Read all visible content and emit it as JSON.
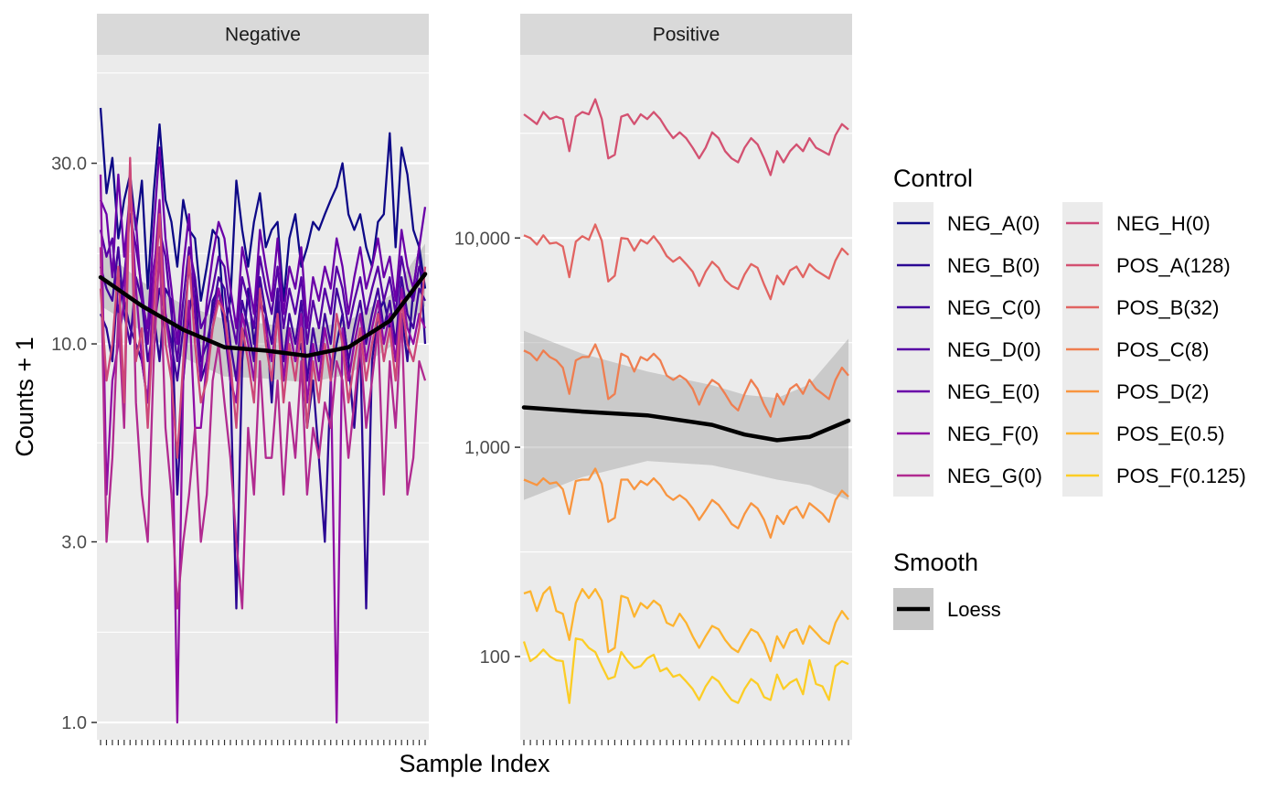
{
  "chart_data": {
    "type": "line",
    "x_label": "Sample Index",
    "y_label": "Counts + 1",
    "y_scale": "log10",
    "grid": true,
    "legend_position": "right",
    "panels": [
      {
        "name": "Negative",
        "ylim": [
          0.9,
          58
        ],
        "y_ticks": [
          1.0,
          3.0,
          10.0,
          30.0
        ],
        "y_tick_labels": [
          "1.0",
          "3.0",
          "10.0",
          "30.0"
        ],
        "series": [
          {
            "name": "NEG_A(0)",
            "color": "#0d0887",
            "values": [
              42,
              25,
              31,
              19,
              24,
              28,
              20,
              27,
              14,
              25,
              38,
              24,
              21,
              16,
              24,
              20,
              19,
              13,
              16,
              20,
              19,
              11,
              13,
              27,
              20,
              16,
              21,
              25,
              18,
              20,
              21,
              13,
              19,
              22,
              16,
              18,
              21,
              20,
              22,
              24,
              26,
              30,
              22,
              20,
              22,
              18,
              16,
              21,
              22,
              36,
              18,
              33,
              28,
              20,
              18,
              14
            ]
          },
          {
            "name": "NEG_B(0)",
            "color": "#2a0593",
            "values": [
              12,
              11,
              9,
              15,
              13,
              11,
              10,
              9,
              7,
              12,
              9,
              14,
              13,
              4,
              8,
              12,
              15,
              8,
              9,
              13,
              14,
              11,
              8,
              2,
              9,
              14,
              10,
              13,
              12,
              7,
              13,
              8,
              11,
              9,
              10,
              6,
              8,
              5,
              3,
              8,
              10,
              12,
              9,
              6,
              10,
              2,
              9,
              12,
              13,
              11,
              10,
              12,
              9,
              14,
              18,
              10
            ]
          },
          {
            "name": "NEG_C(0)",
            "color": "#41049d",
            "values": [
              16,
              14,
              13,
              18,
              12,
              10,
              15,
              13,
              9,
              11,
              14,
              12,
              10,
              8,
              11,
              16,
              13,
              9,
              10,
              12,
              15,
              14,
              10,
              8,
              13,
              11,
              9,
              15,
              12,
              10,
              14,
              9,
              12,
              10,
              13,
              8,
              11,
              9,
              12,
              10,
              14,
              12,
              9,
              11,
              13,
              10,
              12,
              14,
              11,
              13,
              10,
              15,
              12,
              11,
              14,
              13
            ]
          },
          {
            "name": "NEG_D(0)",
            "color": "#5601a4",
            "values": [
              20,
              17,
              19,
              12,
              15,
              22,
              18,
              14,
              10,
              16,
              20,
              17,
              12,
              9,
              13,
              18,
              15,
              11,
              12,
              14,
              17,
              16,
              12,
              10,
              15,
              13,
              11,
              17,
              14,
              12,
              16,
              11,
              14,
              12,
              15,
              10,
              13,
              11,
              14,
              12,
              16,
              14,
              11,
              13,
              15,
              12,
              14,
              16,
              13,
              15,
              12,
              17,
              14,
              13,
              16,
              15
            ]
          },
          {
            "name": "NEG_E(0)",
            "color": "#6a00a8",
            "values": [
              24,
              22,
              15,
              28,
              17,
              25,
              21,
              13,
              11,
              20,
              33,
              19,
              14,
              10,
              16,
              22,
              12,
              8,
              13,
              17,
              21,
              19,
              14,
              11,
              18,
              15,
              12,
              20,
              16,
              13,
              19,
              12,
              16,
              14,
              18,
              11,
              15,
              13,
              16,
              14,
              19,
              16,
              12,
              15,
              18,
              14,
              16,
              19,
              15,
              17,
              13,
              20,
              16,
              14,
              18,
              23
            ]
          },
          {
            "name": "NEG_F(0)",
            "color": "#8f0da4",
            "values": [
              28,
              4,
              8,
              10,
              13,
              26,
              14,
              9,
              7,
              15,
              24,
              12,
              9,
              1,
              8,
              13,
              6,
              6,
              9,
              11,
              14,
              12,
              8,
              7,
              12,
              10,
              8,
              13,
              11,
              9,
              12,
              8,
              11,
              9,
              12,
              7,
              10,
              8,
              11,
              9,
              1,
              11,
              8,
              10,
              12,
              9,
              11,
              13,
              10,
              12,
              9,
              14,
              11,
              10,
              12,
              11
            ]
          },
          {
            "name": "NEG_G(0)",
            "color": "#b12a90",
            "values": [
              18,
              3,
              5,
              12,
              6,
              30,
              7,
              4,
              3,
              9,
              18,
              6,
              4,
              2,
              3,
              4,
              6,
              3,
              4,
              8,
              10,
              7,
              5,
              3,
              2,
              6,
              4,
              9,
              5,
              5,
              8,
              4,
              7,
              5,
              9,
              4,
              6,
              5,
              7,
              6,
              9,
              8,
              5,
              7,
              10,
              6,
              8,
              11,
              4,
              9,
              6,
              12,
              4,
              5,
              9,
              8
            ]
          },
          {
            "name": "NEG_H(0)",
            "color": "#cc4778",
            "values": [
              14,
              8,
              10,
              16,
              7,
              31,
              9,
              11,
              6,
              12,
              22,
              10,
              8,
              5,
              9,
              17,
              10,
              7,
              8,
              11,
              13,
              12,
              9,
              6,
              11,
              9,
              7,
              14,
              10,
              8,
              12,
              7,
              10,
              8,
              11,
              6,
              9,
              7,
              10,
              8,
              12,
              10,
              7,
              9,
              11,
              8,
              10,
              12,
              9,
              11,
              8,
              13,
              10,
              9,
              11,
              16
            ]
          }
        ],
        "smooth": {
          "name": "Loess",
          "color": "#000000",
          "x": [
            1,
            8,
            15,
            22,
            29,
            36,
            43,
            50,
            56
          ],
          "y": [
            15,
            12.6,
            10.9,
            9.8,
            9.6,
            9.3,
            9.8,
            11.5,
            15.3
          ],
          "lower": [
            12.6,
            10.8,
            9.2,
            8.2,
            8.1,
            7.9,
            8.3,
            9.8,
            12.6
          ],
          "upper": [
            17.8,
            14.6,
            12.7,
            11.6,
            11.3,
            10.9,
            11.5,
            13.4,
            18.4
          ]
        }
      },
      {
        "name": "Positive",
        "ylim": [
          40,
          75000
        ],
        "y_ticks": [
          100,
          1000,
          10000
        ],
        "y_tick_labels": [
          "100",
          "1,000",
          "10,000"
        ],
        "series": [
          {
            "name": "POS_A(128)",
            "color": "#d35171",
            "values": [
              39000,
              37000,
              35000,
              40000,
              37000,
              38000,
              37000,
              26000,
              38000,
              40000,
              39000,
              46000,
              37000,
              24000,
              25000,
              38000,
              39000,
              35000,
              39000,
              37000,
              40000,
              37000,
              33000,
              30000,
              32000,
              30000,
              27000,
              24000,
              27000,
              32000,
              30000,
              26000,
              24000,
              23000,
              27000,
              30000,
              28000,
              24000,
              20000,
              26000,
              23000,
              26000,
              28000,
              26000,
              30000,
              27000,
              26000,
              25000,
              31000,
              35000,
              33000
            ]
          },
          {
            "name": "POS_B(32)",
            "color": "#e16462",
            "values": [
              10300,
              10000,
              9300,
              10300,
              9400,
              9500,
              9100,
              6500,
              9600,
              10200,
              9800,
              11600,
              9700,
              6200,
              6600,
              10000,
              9900,
              8700,
              9800,
              9400,
              10200,
              9300,
              8200,
              7700,
              8100,
              7500,
              6900,
              5900,
              6900,
              7700,
              7200,
              6300,
              5900,
              5700,
              6700,
              7500,
              7200,
              6000,
              5100,
              6600,
              6000,
              7000,
              7300,
              6500,
              7500,
              7000,
              6700,
              6400,
              7800,
              8900,
              8300
            ]
          },
          {
            "name": "POS_C(8)",
            "color": "#ef7e50",
            "values": [
              2900,
              2800,
              2600,
              2900,
              2700,
              2600,
              2400,
              1800,
              2600,
              2700,
              2700,
              3100,
              2600,
              1700,
              1800,
              2800,
              2700,
              2300,
              2700,
              2600,
              2800,
              2600,
              2200,
              2100,
              2200,
              2100,
              1900,
              1600,
              1900,
              2100,
              2000,
              1800,
              1600,
              1500,
              1800,
              2100,
              1900,
              1600,
              1400,
              1800,
              1600,
              1900,
              2000,
              1800,
              2100,
              1900,
              1800,
              1700,
              2100,
              2400,
              2200
            ]
          },
          {
            "name": "POS_D(2)",
            "color": "#f89540",
            "values": [
              700,
              680,
              660,
              710,
              670,
              680,
              630,
              480,
              690,
              700,
              700,
              790,
              670,
              440,
              460,
              700,
              700,
              630,
              690,
              660,
              710,
              660,
              590,
              560,
              590,
              560,
              510,
              450,
              500,
              560,
              530,
              480,
              430,
              410,
              480,
              540,
              510,
              450,
              370,
              470,
              430,
              500,
              520,
              460,
              540,
              510,
              480,
              440,
              560,
              620,
              580
            ]
          },
          {
            "name": "POS_E(0.5)",
            "color": "#fdb42f",
            "values": [
              200,
              205,
              165,
              200,
              215,
              165,
              160,
              120,
              180,
              210,
              190,
              210,
              185,
              105,
              110,
              195,
              190,
              155,
              180,
              170,
              185,
              175,
              145,
              140,
              160,
              145,
              125,
              110,
              125,
              140,
              135,
              120,
              110,
              105,
              120,
              135,
              130,
              115,
              95,
              125,
              110,
              130,
              135,
              115,
              140,
              130,
              120,
              115,
              145,
              165,
              150
            ]
          },
          {
            "name": "POS_F(0.125)",
            "color": "#fccd25",
            "values": [
              118,
              95,
              100,
              108,
              100,
              96,
              95,
              60,
              122,
              120,
              110,
              105,
              90,
              78,
              80,
              105,
              95,
              88,
              90,
              98,
              102,
              85,
              88,
              80,
              82,
              76,
              70,
              62,
              72,
              80,
              76,
              68,
              62,
              60,
              70,
              78,
              74,
              64,
              62,
              82,
              70,
              75,
              78,
              66,
              96,
              74,
              72,
              62,
              90,
              95,
              92
            ]
          }
        ],
        "smooth": {
          "name": "Loess",
          "color": "#000000",
          "x": [
            1,
            10,
            20,
            30,
            35,
            40,
            45,
            51
          ],
          "y": [
            1550,
            1480,
            1420,
            1280,
            1150,
            1080,
            1120,
            1340
          ],
          "lower": [
            560,
            720,
            860,
            820,
            760,
            700,
            660,
            560
          ],
          "upper": [
            3600,
            2800,
            2300,
            1980,
            1780,
            1720,
            2000,
            3300
          ]
        }
      }
    ]
  },
  "legend": {
    "control_title": "Control",
    "control_items": [
      {
        "label": "NEG_A(0)",
        "color": "#0d0887"
      },
      {
        "label": "NEG_B(0)",
        "color": "#2a0593"
      },
      {
        "label": "NEG_C(0)",
        "color": "#41049d"
      },
      {
        "label": "NEG_D(0)",
        "color": "#5601a4"
      },
      {
        "label": "NEG_E(0)",
        "color": "#6a00a8"
      },
      {
        "label": "NEG_F(0)",
        "color": "#8f0da4"
      },
      {
        "label": "NEG_G(0)",
        "color": "#b12a90"
      },
      {
        "label": "NEG_H(0)",
        "color": "#cc4778"
      },
      {
        "label": "POS_A(128)",
        "color": "#d35171"
      },
      {
        "label": "POS_B(32)",
        "color": "#e16462"
      },
      {
        "label": "POS_C(8)",
        "color": "#ef7e50"
      },
      {
        "label": "POS_D(2)",
        "color": "#f89540"
      },
      {
        "label": "POS_E(0.5)",
        "color": "#fdb42f"
      },
      {
        "label": "POS_F(0.125)",
        "color": "#fccd25"
      }
    ],
    "smooth_title": "Smooth",
    "smooth_items": [
      {
        "label": "Loess",
        "color": "#000000"
      }
    ]
  }
}
